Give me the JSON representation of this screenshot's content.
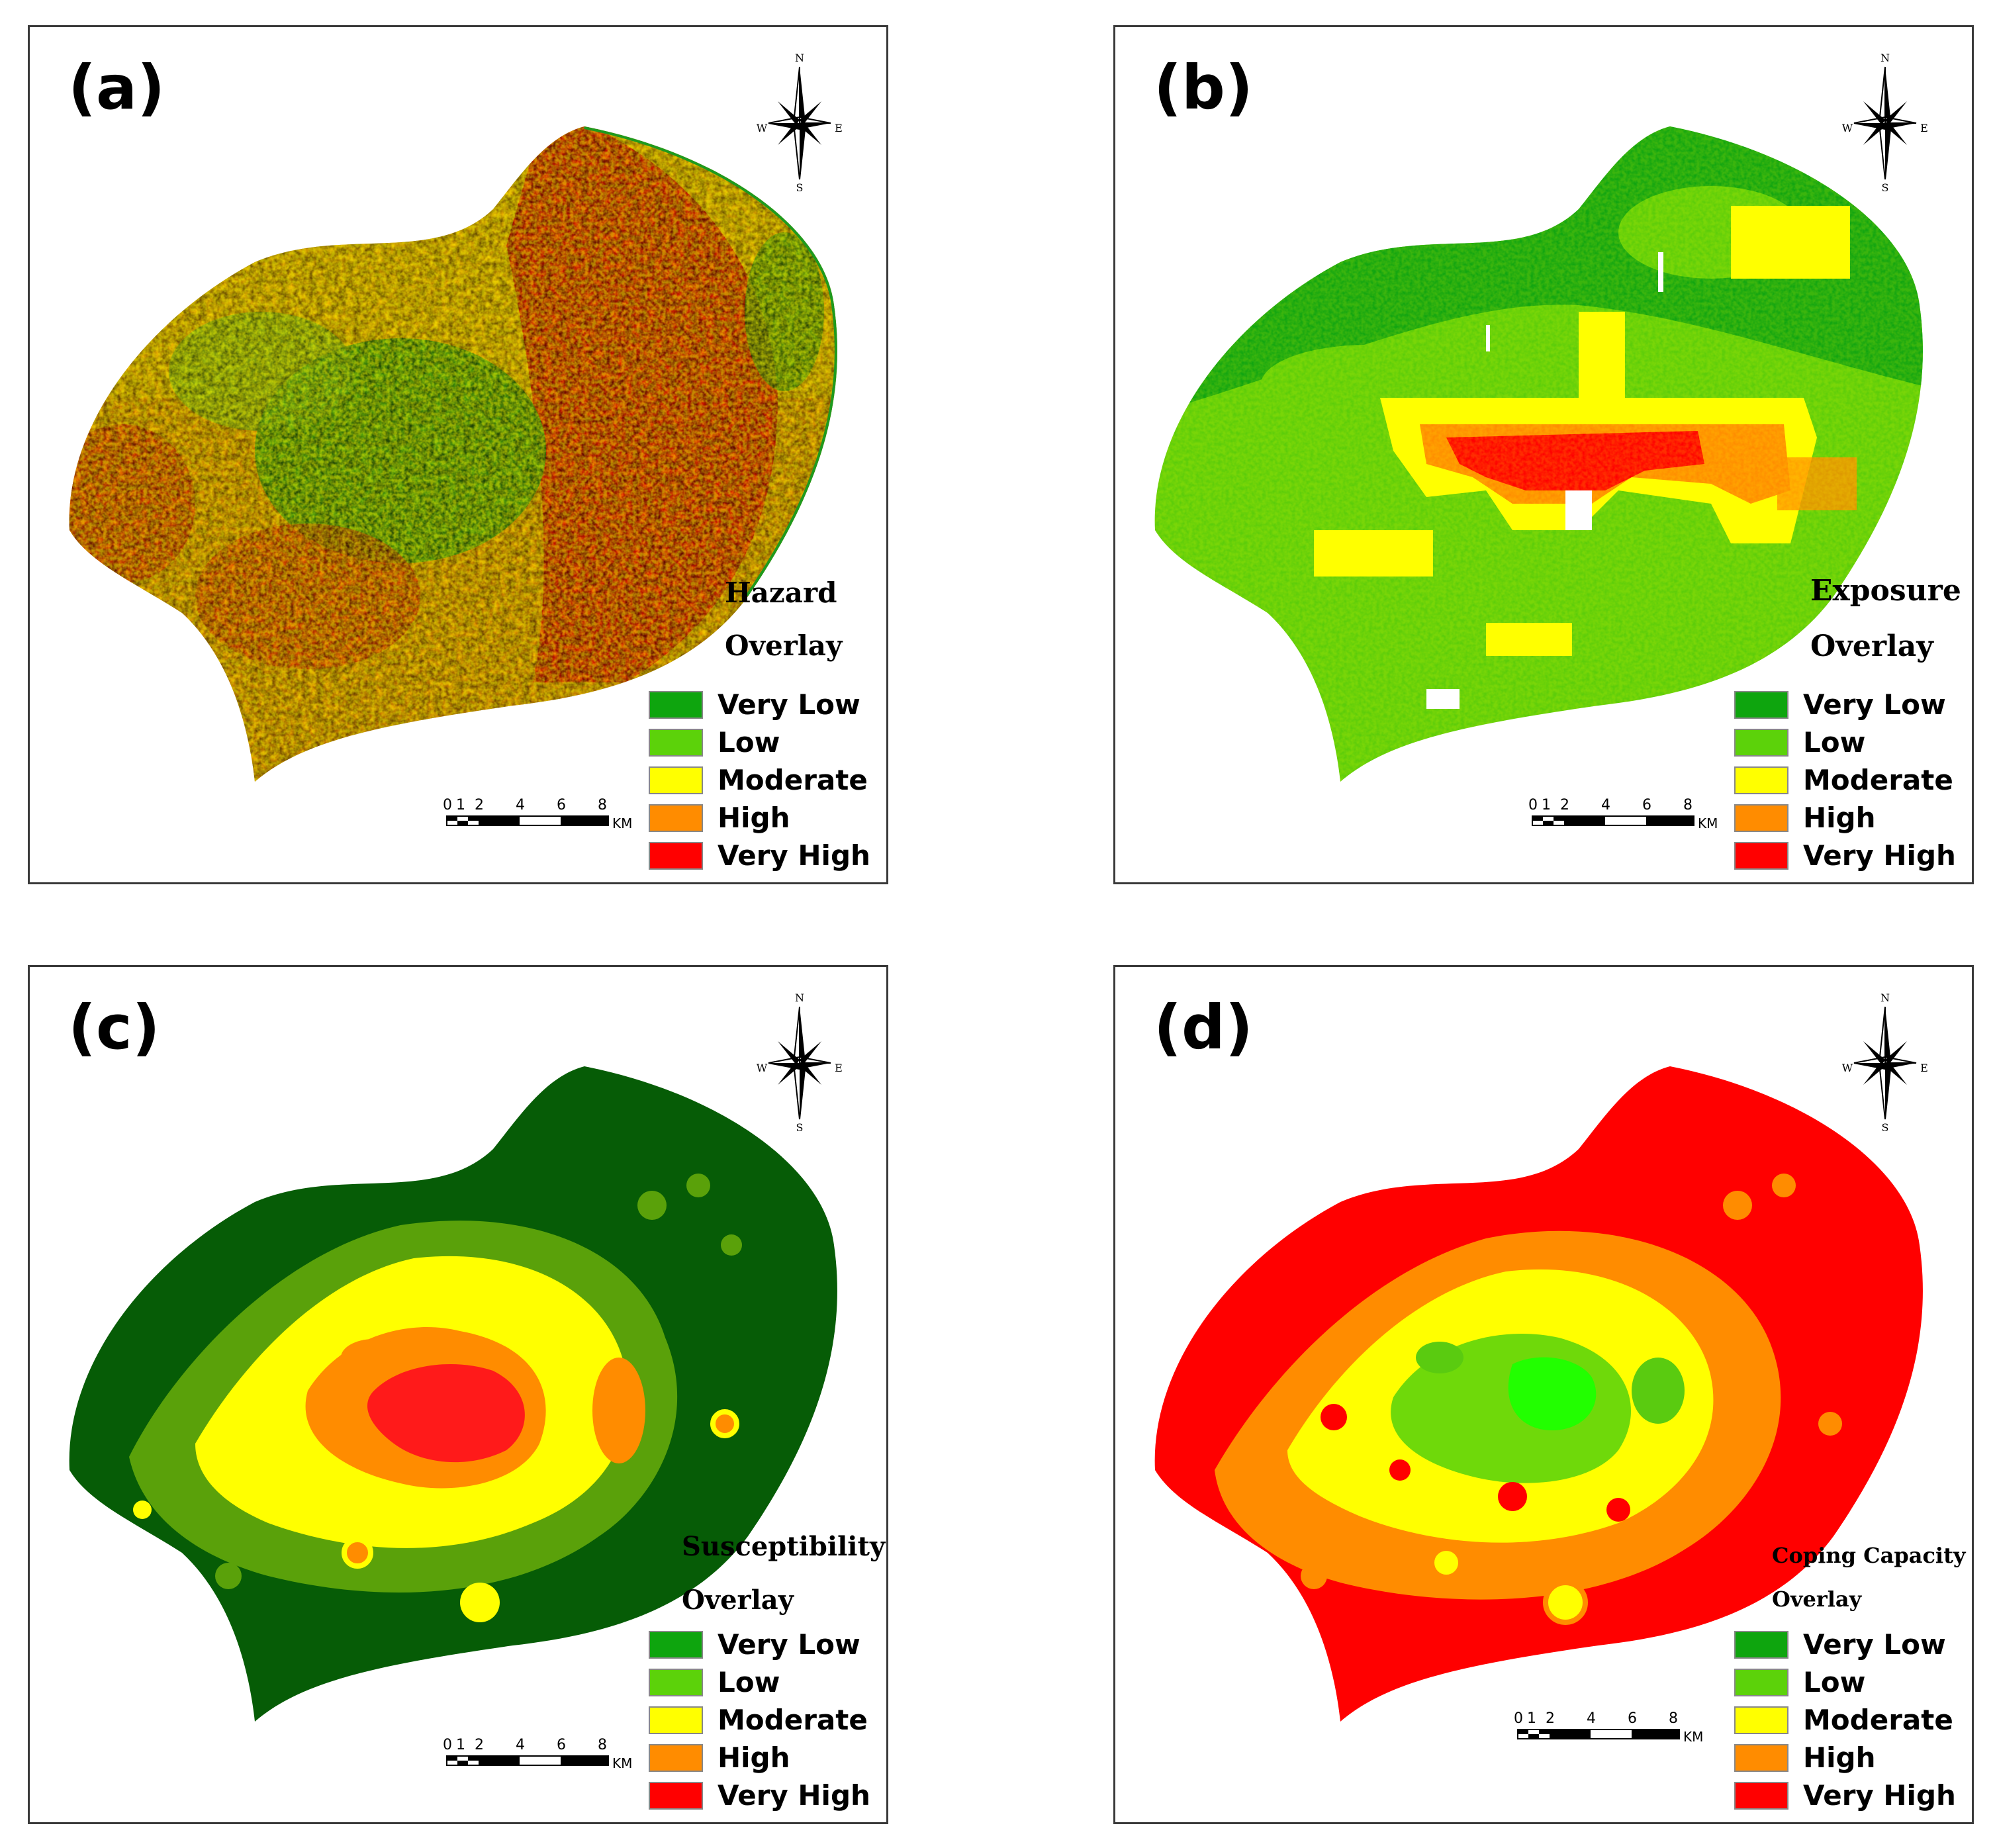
{
  "legend_items": [
    {
      "label": "Very Low",
      "color": "#0ea50e"
    },
    {
      "label": "Low",
      "color": "#5cd20a"
    },
    {
      "label": "Moderate",
      "color": "#ffff00"
    },
    {
      "label": "High",
      "color": "#ff8c00"
    },
    {
      "label": "Very High",
      "color": "#ff0000"
    }
  ],
  "compass": {
    "n": "N",
    "s": "S",
    "e": "E",
    "w": "W"
  },
  "scale": {
    "ticks": [
      "0",
      "1",
      "2",
      "4",
      "6",
      "8"
    ],
    "unit": "KM"
  },
  "panels": [
    {
      "id": "a",
      "label": "(a)",
      "title1": "Hazard",
      "title2": "Overlay"
    },
    {
      "id": "b",
      "label": "(b)",
      "title1": "Exposure",
      "title2": "Overlay"
    },
    {
      "id": "c",
      "label": "(c)",
      "title1": "Susceptibility",
      "title2": "Overlay"
    },
    {
      "id": "d",
      "label": "(d)",
      "title1": "Coping Capacity",
      "title2": "Overlay"
    }
  ]
}
